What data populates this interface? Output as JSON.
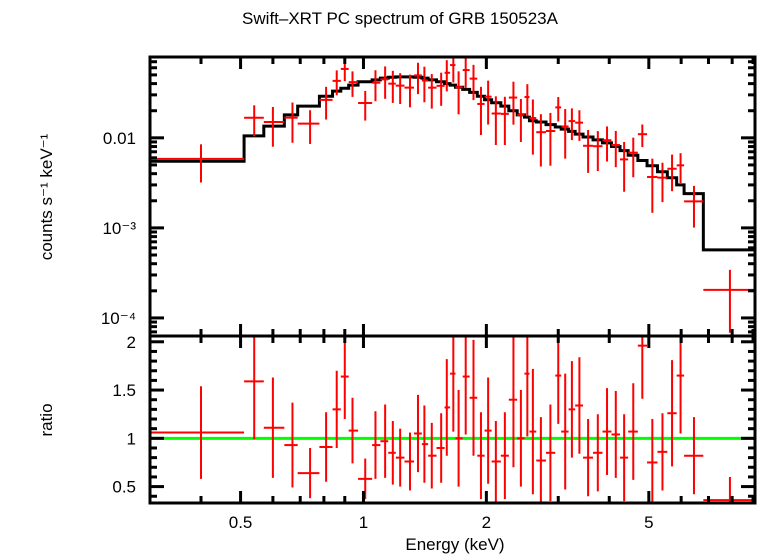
{
  "chart_data": {
    "type": "scatter",
    "title": "Swift–XRT PC spectrum of GRB 150523A",
    "xlabel": "Energy (keV)",
    "xscale": "log",
    "xlim": [
      0.3,
      9.1
    ],
    "xticks": [
      {
        "value": 0.5,
        "label": "0.5"
      },
      {
        "value": 1,
        "label": "1"
      },
      {
        "value": 2,
        "label": "2"
      },
      {
        "value": 5,
        "label": "5"
      }
    ],
    "panels": [
      {
        "name": "spectrum",
        "ylabel": "counts s⁻¹ keV⁻¹",
        "yscale": "log",
        "ylim": [
          6.3e-05,
          0.079
        ],
        "yticks": [
          {
            "value": 0.01,
            "label": "0.01"
          },
          {
            "value": 0.001,
            "label": "10⁻³"
          },
          {
            "value": 0.0001,
            "label": "10⁻⁴"
          }
        ]
      },
      {
        "name": "ratio",
        "ylabel": "ratio",
        "yscale": "linear",
        "ylim": [
          0.33,
          2.06
        ],
        "yticks": [
          {
            "value": 0.5,
            "label": "0.5"
          },
          {
            "value": 1,
            "label": "1"
          },
          {
            "value": 1.5,
            "label": "1.5"
          },
          {
            "value": 2,
            "label": "2"
          }
        ],
        "reference_line": 1
      }
    ],
    "series": [
      {
        "name": "data",
        "color": "#ff0000",
        "bins": [
          {
            "elo": 0.3,
            "ehi": 0.51,
            "e": 0.4,
            "ratio": 1.06,
            "rerr": 0.48
          },
          {
            "elo": 0.51,
            "ehi": 0.57,
            "e": 0.54,
            "ratio": 1.59,
            "rerr": 0.6
          },
          {
            "elo": 0.57,
            "ehi": 0.64,
            "e": 0.6,
            "ratio": 1.11,
            "rerr": 0.52
          },
          {
            "elo": 0.64,
            "ehi": 0.69,
            "e": 0.67,
            "ratio": 0.93,
            "rerr": 0.44
          },
          {
            "elo": 0.69,
            "ehi": 0.78,
            "e": 0.74,
            "ratio": 0.64,
            "rerr": 0.26
          },
          {
            "elo": 0.78,
            "ehi": 0.84,
            "e": 0.81,
            "ratio": 0.91,
            "rerr": 0.36
          },
          {
            "elo": 0.84,
            "ehi": 0.88,
            "e": 0.86,
            "ratio": 1.3,
            "rerr": 0.4
          },
          {
            "elo": 0.88,
            "ehi": 0.92,
            "e": 0.9,
            "ratio": 1.64,
            "rerr": 0.44
          },
          {
            "elo": 0.92,
            "ehi": 0.97,
            "e": 0.94,
            "ratio": 1.08,
            "rerr": 0.34
          },
          {
            "elo": 0.97,
            "ehi": 1.05,
            "e": 1.01,
            "ratio": 0.58,
            "rerr": 0.21
          },
          {
            "elo": 1.05,
            "ehi": 1.1,
            "e": 1.07,
            "ratio": 0.93,
            "rerr": 0.35
          },
          {
            "elo": 1.1,
            "ehi": 1.15,
            "e": 1.13,
            "ratio": 0.97,
            "rerr": 0.38
          },
          {
            "elo": 1.15,
            "ehi": 1.2,
            "e": 1.18,
            "ratio": 0.85,
            "rerr": 0.33
          },
          {
            "elo": 1.2,
            "ehi": 1.26,
            "e": 1.23,
            "ratio": 0.8,
            "rerr": 0.3
          },
          {
            "elo": 1.26,
            "ehi": 1.33,
            "e": 1.3,
            "ratio": 0.76,
            "rerr": 0.3
          },
          {
            "elo": 1.33,
            "ehi": 1.39,
            "e": 1.36,
            "ratio": 1.05,
            "rerr": 0.4
          },
          {
            "elo": 1.39,
            "ehi": 1.44,
            "e": 1.41,
            "ratio": 0.94,
            "rerr": 0.4
          },
          {
            "elo": 1.44,
            "ehi": 1.51,
            "e": 1.47,
            "ratio": 0.82,
            "rerr": 0.34
          },
          {
            "elo": 1.51,
            "ehi": 1.58,
            "e": 1.55,
            "ratio": 0.9,
            "rerr": 0.36
          },
          {
            "elo": 1.58,
            "ehi": 1.63,
            "e": 1.6,
            "ratio": 1.32,
            "rerr": 0.5
          },
          {
            "elo": 1.63,
            "ehi": 1.68,
            "e": 1.66,
            "ratio": 1.67,
            "rerr": 0.6
          },
          {
            "elo": 1.68,
            "ehi": 1.75,
            "e": 1.71,
            "ratio": 1.0,
            "rerr": 0.5
          },
          {
            "elo": 1.75,
            "ehi": 1.82,
            "e": 1.78,
            "ratio": 1.64,
            "rerr": 0.6
          },
          {
            "elo": 1.82,
            "ehi": 1.9,
            "e": 1.86,
            "ratio": 1.42,
            "rerr": 0.6
          },
          {
            "elo": 1.9,
            "ehi": 1.98,
            "e": 1.94,
            "ratio": 0.82,
            "rerr": 0.45
          },
          {
            "elo": 1.98,
            "ehi": 2.06,
            "e": 2.02,
            "ratio": 1.08,
            "rerr": 0.55
          },
          {
            "elo": 2.06,
            "ehi": 2.17,
            "e": 2.11,
            "ratio": 0.76,
            "rerr": 0.42
          },
          {
            "elo": 2.17,
            "ehi": 2.27,
            "e": 2.22,
            "ratio": 0.82,
            "rerr": 0.45
          },
          {
            "elo": 2.27,
            "ehi": 2.38,
            "e": 2.33,
            "ratio": 1.4,
            "rerr": 0.7
          },
          {
            "elo": 2.38,
            "ehi": 2.48,
            "e": 2.43,
            "ratio": 1.0,
            "rerr": 0.5
          },
          {
            "elo": 2.48,
            "ehi": 2.55,
            "e": 2.52,
            "ratio": 1.67,
            "rerr": 0.65
          },
          {
            "elo": 2.55,
            "ehi": 2.65,
            "e": 2.6,
            "ratio": 1.07,
            "rerr": 0.65
          },
          {
            "elo": 2.65,
            "ehi": 2.8,
            "e": 2.72,
            "ratio": 0.77,
            "rerr": 0.45
          },
          {
            "elo": 2.8,
            "ehi": 2.95,
            "e": 2.87,
            "ratio": 0.85,
            "rerr": 0.5
          },
          {
            "elo": 2.95,
            "ehi": 3.05,
            "e": 3.0,
            "ratio": 1.65,
            "rerr": 0.5
          },
          {
            "elo": 3.05,
            "ehi": 3.18,
            "e": 3.12,
            "ratio": 1.07,
            "rerr": 0.6
          },
          {
            "elo": 3.18,
            "ehi": 3.3,
            "e": 3.24,
            "ratio": 1.3,
            "rerr": 0.5
          },
          {
            "elo": 3.3,
            "ehi": 3.45,
            "e": 3.38,
            "ratio": 1.34,
            "rerr": 0.5
          },
          {
            "elo": 3.45,
            "ehi": 3.65,
            "e": 3.55,
            "ratio": 0.8,
            "rerr": 0.4
          },
          {
            "elo": 3.65,
            "ehi": 3.85,
            "e": 3.75,
            "ratio": 0.85,
            "rerr": 0.4
          },
          {
            "elo": 3.85,
            "ehi": 4.05,
            "e": 3.95,
            "ratio": 1.07,
            "rerr": 0.45
          },
          {
            "elo": 4.05,
            "ehi": 4.25,
            "e": 4.15,
            "ratio": 1.04,
            "rerr": 0.45
          },
          {
            "elo": 4.25,
            "ehi": 4.45,
            "e": 4.35,
            "ratio": 0.8,
            "rerr": 0.45
          },
          {
            "elo": 4.45,
            "ehi": 4.7,
            "e": 4.58,
            "ratio": 1.07,
            "rerr": 0.5
          },
          {
            "elo": 4.7,
            "ehi": 4.95,
            "e": 4.82,
            "ratio": 1.96,
            "rerr": 0.55
          },
          {
            "elo": 4.95,
            "ehi": 5.25,
            "e": 5.1,
            "ratio": 0.75,
            "rerr": 0.45
          },
          {
            "elo": 5.25,
            "ehi": 5.55,
            "e": 5.4,
            "ratio": 0.86,
            "rerr": 0.4
          },
          {
            "elo": 5.55,
            "ehi": 5.85,
            "e": 5.7,
            "ratio": 1.26,
            "rerr": 0.55
          },
          {
            "elo": 5.85,
            "ehi": 6.1,
            "e": 5.98,
            "ratio": 1.65,
            "rerr": 0.6
          },
          {
            "elo": 6.1,
            "ehi": 6.8,
            "e": 6.45,
            "ratio": 0.82,
            "rerr": 0.4
          },
          {
            "elo": 6.8,
            "ehi": 9.1,
            "e": 7.9,
            "ratio": 0.36,
            "rerr": 0.24
          }
        ]
      },
      {
        "name": "model",
        "color": "#000000",
        "steps": [
          {
            "elo": 0.3,
            "ehi": 0.51,
            "y": 0.0055
          },
          {
            "elo": 0.51,
            "ehi": 0.57,
            "y": 0.0105
          },
          {
            "elo": 0.57,
            "ehi": 0.64,
            "y": 0.0135
          },
          {
            "elo": 0.64,
            "ehi": 0.69,
            "y": 0.018
          },
          {
            "elo": 0.69,
            "ehi": 0.78,
            "y": 0.0225
          },
          {
            "elo": 0.78,
            "ehi": 0.84,
            "y": 0.029
          },
          {
            "elo": 0.84,
            "ehi": 0.88,
            "y": 0.033
          },
          {
            "elo": 0.88,
            "ehi": 0.92,
            "y": 0.0355
          },
          {
            "elo": 0.92,
            "ehi": 0.97,
            "y": 0.0385
          },
          {
            "elo": 0.97,
            "ehi": 1.05,
            "y": 0.042
          },
          {
            "elo": 1.05,
            "ehi": 1.1,
            "y": 0.044
          },
          {
            "elo": 1.1,
            "ehi": 1.15,
            "y": 0.046
          },
          {
            "elo": 1.15,
            "ehi": 1.2,
            "y": 0.047
          },
          {
            "elo": 1.2,
            "ehi": 1.26,
            "y": 0.0475
          },
          {
            "elo": 1.26,
            "ehi": 1.33,
            "y": 0.0475
          },
          {
            "elo": 1.33,
            "ehi": 1.39,
            "y": 0.047
          },
          {
            "elo": 1.39,
            "ehi": 1.44,
            "y": 0.046
          },
          {
            "elo": 1.44,
            "ehi": 1.51,
            "y": 0.044
          },
          {
            "elo": 1.51,
            "ehi": 1.58,
            "y": 0.042
          },
          {
            "elo": 1.58,
            "ehi": 1.63,
            "y": 0.04
          },
          {
            "elo": 1.63,
            "ehi": 1.68,
            "y": 0.0385
          },
          {
            "elo": 1.68,
            "ehi": 1.75,
            "y": 0.0365
          },
          {
            "elo": 1.75,
            "ehi": 1.82,
            "y": 0.0345
          },
          {
            "elo": 1.82,
            "ehi": 1.9,
            "y": 0.032
          },
          {
            "elo": 1.9,
            "ehi": 1.98,
            "y": 0.029
          },
          {
            "elo": 1.98,
            "ehi": 2.06,
            "y": 0.0265
          },
          {
            "elo": 2.06,
            "ehi": 2.17,
            "y": 0.0245
          },
          {
            "elo": 2.17,
            "ehi": 2.27,
            "y": 0.0225
          },
          {
            "elo": 2.27,
            "ehi": 2.38,
            "y": 0.02
          },
          {
            "elo": 2.38,
            "ehi": 2.48,
            "y": 0.018
          },
          {
            "elo": 2.48,
            "ehi": 2.55,
            "y": 0.017
          },
          {
            "elo": 2.55,
            "ehi": 2.65,
            "y": 0.0155
          },
          {
            "elo": 2.65,
            "ehi": 2.8,
            "y": 0.015
          },
          {
            "elo": 2.8,
            "ehi": 2.95,
            "y": 0.014
          },
          {
            "elo": 2.95,
            "ehi": 3.05,
            "y": 0.0132
          },
          {
            "elo": 3.05,
            "ehi": 3.18,
            "y": 0.0125
          },
          {
            "elo": 3.18,
            "ehi": 3.3,
            "y": 0.0118
          },
          {
            "elo": 3.3,
            "ehi": 3.45,
            "y": 0.011
          },
          {
            "elo": 3.45,
            "ehi": 3.65,
            "y": 0.0102
          },
          {
            "elo": 3.65,
            "ehi": 3.85,
            "y": 0.0095
          },
          {
            "elo": 3.85,
            "ehi": 4.05,
            "y": 0.0088
          },
          {
            "elo": 4.05,
            "ehi": 4.25,
            "y": 0.008
          },
          {
            "elo": 4.25,
            "ehi": 4.45,
            "y": 0.0072
          },
          {
            "elo": 4.45,
            "ehi": 4.7,
            "y": 0.0064
          },
          {
            "elo": 4.7,
            "ehi": 4.95,
            "y": 0.0056
          },
          {
            "elo": 4.95,
            "ehi": 5.25,
            "y": 0.0049
          },
          {
            "elo": 5.25,
            "ehi": 5.55,
            "y": 0.0042
          },
          {
            "elo": 5.55,
            "ehi": 5.85,
            "y": 0.0036
          },
          {
            "elo": 5.85,
            "ehi": 6.1,
            "y": 0.003
          },
          {
            "elo": 6.1,
            "ehi": 6.8,
            "y": 0.0024
          },
          {
            "elo": 6.8,
            "ehi": 9.1,
            "y": 0.00057
          }
        ]
      },
      {
        "name": "unity line",
        "color": "#00ff00",
        "y": 1
      }
    ]
  }
}
